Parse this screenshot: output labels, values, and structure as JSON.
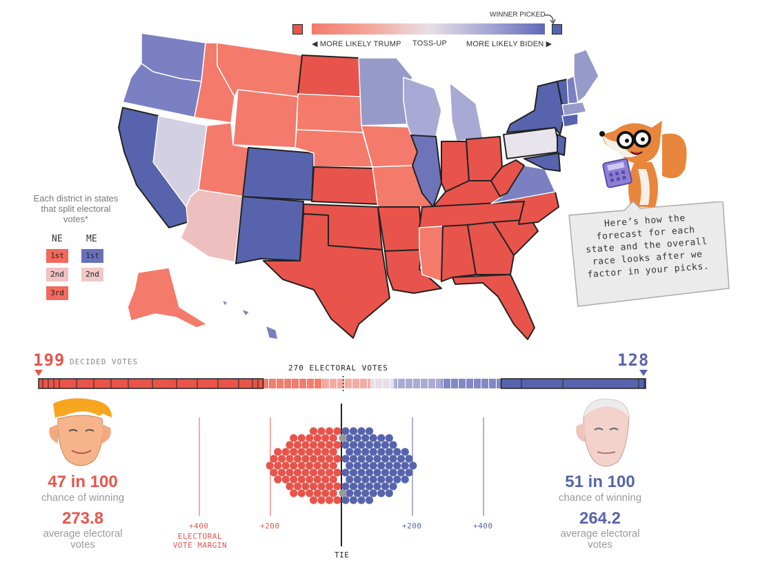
{
  "legend": {
    "winner_picked": "WINNER PICKED",
    "more_likely_trump": "◀ MORE LIKELY TRUMP",
    "toss_up": "TOSS-UP",
    "more_likely_biden": "MORE LIKELY BIDEN ▶",
    "colors": {
      "trump_picked": "#e8544b",
      "biden_picked": "#5764ad"
    }
  },
  "district_legend": {
    "title": "Each district in states that split electoral votes*",
    "ne_label": "NE",
    "me_label": "ME",
    "ne": [
      {
        "label": "1st",
        "color": "#f2695d"
      },
      {
        "label": "2nd",
        "color": "#f1c1c1"
      },
      {
        "label": "3rd",
        "color": "#f2695d"
      }
    ],
    "me": [
      {
        "label": "1st",
        "color": "#6870b9"
      },
      {
        "label": "2nd",
        "color": "#f1c8c8"
      }
    ]
  },
  "bubble": {
    "text": "Here’s how the forecast for each state and the overall race looks after we factor in your picks."
  },
  "bar": {
    "trump_decided": "199",
    "biden_decided": "128",
    "decided_label": "DECIDED VOTES",
    "threshold_label": "270 ELECTORAL VOTES"
  },
  "trump": {
    "chance": "47 in 100",
    "chance_label": "chance of winning",
    "avg_ev": "273.8",
    "avg_label": "average electoral votes",
    "color": "#e8544b"
  },
  "biden": {
    "chance": "51 in 100",
    "chance_label": "chance of winning",
    "avg_ev": "264.2",
    "avg_label": "average electoral votes",
    "color": "#5764ad"
  },
  "margin_axis": {
    "left400": "+400",
    "left200": "+200",
    "right200": "+200",
    "right400": "+400",
    "title": "ELECTORAL VOTE MARGIN",
    "tie": "TIE"
  }
}
